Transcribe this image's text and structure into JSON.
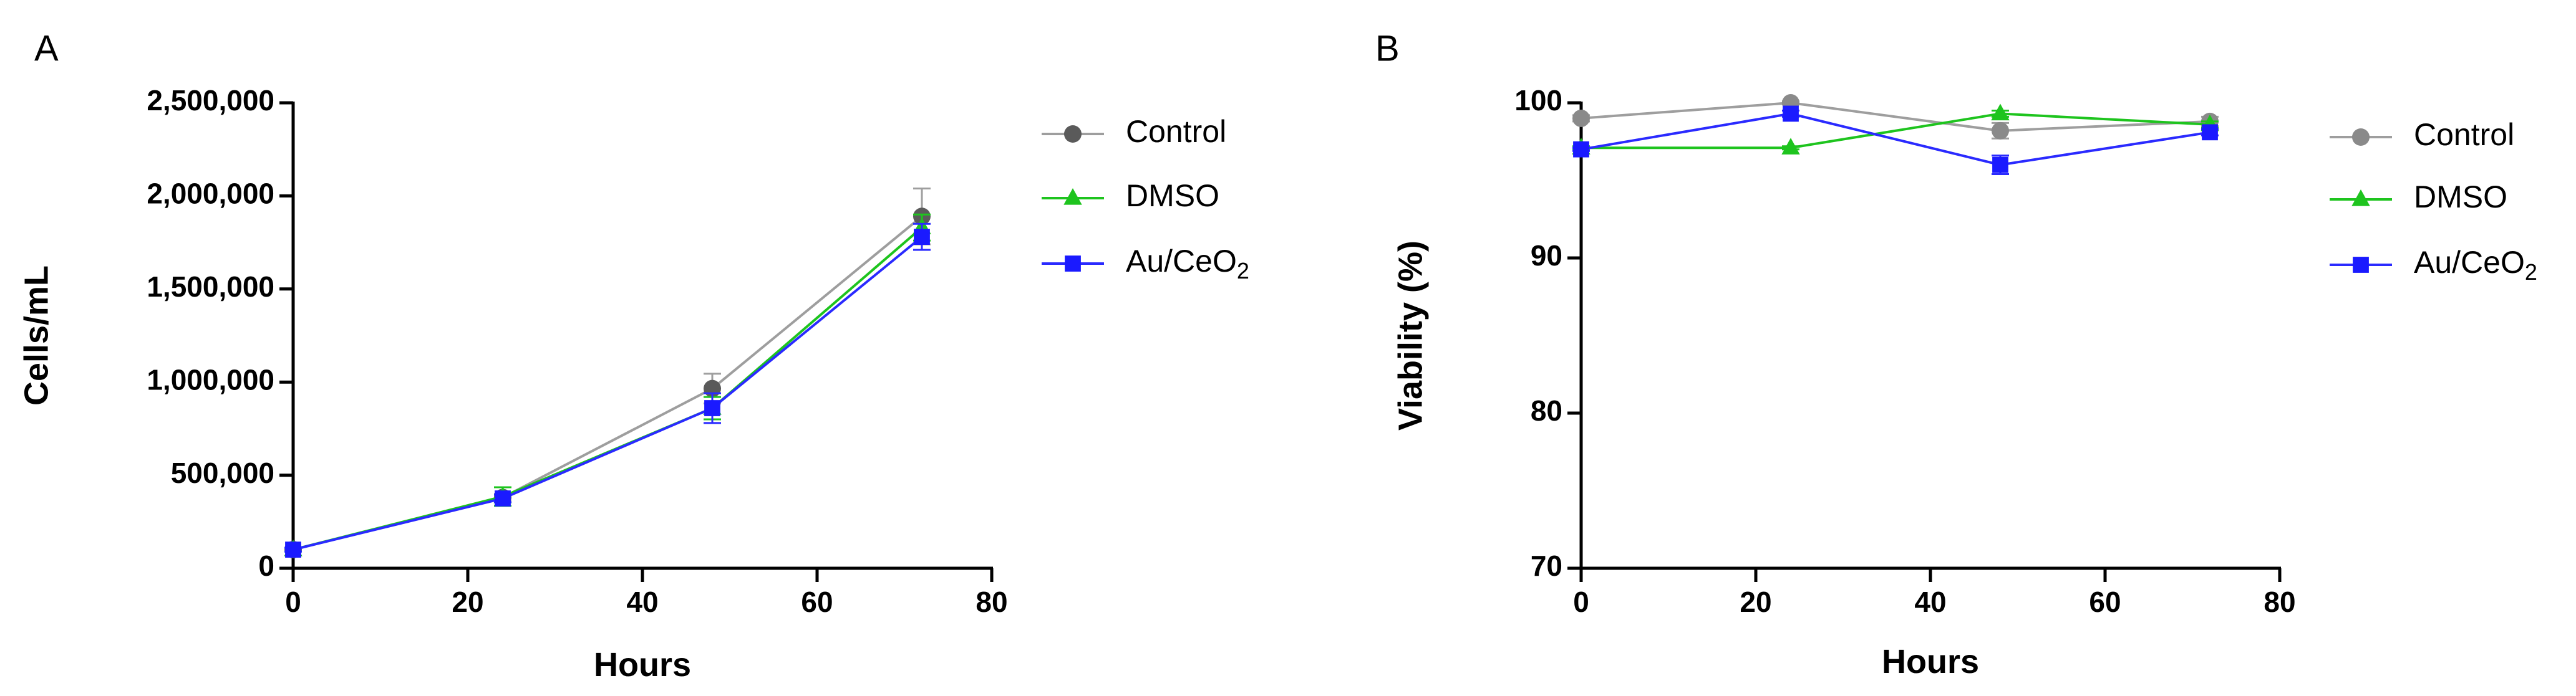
{
  "chart_data": [
    {
      "panel": "A",
      "type": "line",
      "xlabel": "Hours",
      "ylabel": "Cells/mL",
      "xlim": [
        0,
        80
      ],
      "ylim": [
        0,
        2500000
      ],
      "xticks": [
        0,
        20,
        40,
        60,
        80
      ],
      "yticks": [
        0,
        500000,
        1000000,
        1500000,
        2000000,
        2500000
      ],
      "xtick_labels": [
        "0",
        "20",
        "40",
        "60",
        "80"
      ],
      "ytick_labels": [
        "0",
        "500,000",
        "1,000,000",
        "1,500,000",
        "2,000,000",
        "2,500,000"
      ],
      "x": [
        0,
        24,
        48,
        72
      ],
      "legend_position": "right",
      "series": [
        {
          "name": "Control",
          "marker": "circle",
          "color": "#5a5a5a",
          "line_color": "#9e9e9e",
          "values": [
            100000,
            380000,
            965000,
            1890000
          ],
          "errors": [
            10000,
            20000,
            80000,
            150000
          ]
        },
        {
          "name": "DMSO",
          "marker": "triangle",
          "color": "#1ec41e",
          "line_color": "#1ec41e",
          "values": [
            100000,
            385000,
            860000,
            1830000
          ],
          "errors": [
            10000,
            50000,
            60000,
            70000
          ]
        },
        {
          "name": "Au/CeO",
          "name_subscript": "2",
          "marker": "square",
          "color": "#1a1aff",
          "line_color": "#2a2aff",
          "values": [
            100000,
            375000,
            860000,
            1780000
          ],
          "errors": [
            10000,
            20000,
            80000,
            70000
          ]
        }
      ]
    },
    {
      "panel": "B",
      "type": "line",
      "xlabel": "Hours",
      "ylabel": "Viability (%)",
      "xlim": [
        0,
        80
      ],
      "ylim": [
        70,
        100
      ],
      "xticks": [
        0,
        20,
        40,
        60,
        80
      ],
      "yticks": [
        70,
        80,
        90,
        100
      ],
      "xtick_labels": [
        "0",
        "20",
        "40",
        "60",
        "80"
      ],
      "ytick_labels": [
        "70",
        "80",
        "90",
        "100"
      ],
      "x": [
        0,
        24,
        48,
        72
      ],
      "legend_position": "right",
      "series": [
        {
          "name": "Control",
          "marker": "circle",
          "color": "#8a8a8a",
          "line_color": "#9e9e9e",
          "values": [
            99.0,
            100.0,
            98.2,
            98.8
          ],
          "errors": [
            0.2,
            0.1,
            0.5,
            0.3
          ]
        },
        {
          "name": "DMSO",
          "marker": "triangle",
          "color": "#1ec41e",
          "line_color": "#1ec41e",
          "values": [
            97.1,
            97.1,
            99.3,
            98.6
          ],
          "errors": [
            0.1,
            0.1,
            0.2,
            0.2
          ]
        },
        {
          "name": "Au/CeO",
          "name_subscript": "2",
          "marker": "square",
          "color": "#1a1aff",
          "line_color": "#2a2aff",
          "values": [
            97.0,
            99.3,
            96.0,
            98.1
          ],
          "errors": [
            0.1,
            0.2,
            0.6,
            0.2
          ]
        }
      ]
    }
  ]
}
